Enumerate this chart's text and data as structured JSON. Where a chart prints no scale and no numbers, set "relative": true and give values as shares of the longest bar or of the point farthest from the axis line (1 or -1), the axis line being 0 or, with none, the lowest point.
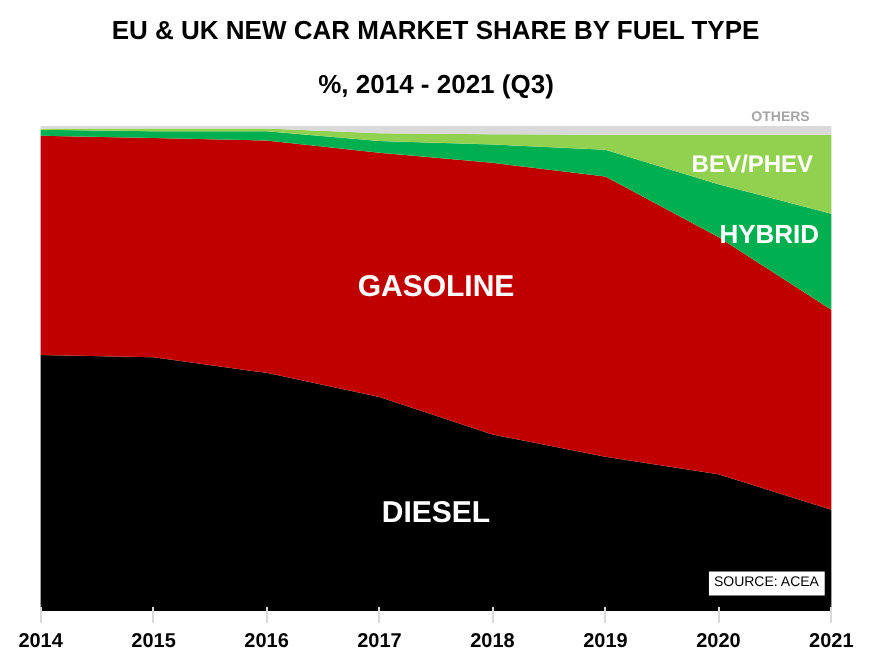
{
  "chart_data": {
    "type": "area",
    "title": "EU & UK NEW CAR MARKET SHARE BY FUEL TYPE",
    "subtitle": "%, 2014 - 2021 (Q3)",
    "categories": [
      "2014",
      "2015",
      "2016",
      "2017",
      "2018",
      "2019",
      "2020",
      "2021"
    ],
    "stacked": true,
    "relative": true,
    "grid": false,
    "series": [
      {
        "name": "DIESEL",
        "color": "#000000",
        "values": [
          0.528,
          0.523,
          0.491,
          0.441,
          0.364,
          0.318,
          0.282,
          0.209
        ]
      },
      {
        "name": "GASOLINE",
        "color": "#c00000",
        "values": [
          0.452,
          0.452,
          0.479,
          0.504,
          0.56,
          0.578,
          0.489,
          0.412
        ]
      },
      {
        "name": "HYBRID",
        "color": "#00b050",
        "values": [
          0.012,
          0.014,
          0.019,
          0.024,
          0.038,
          0.055,
          0.109,
          0.198
        ]
      },
      {
        "name": "BEV/PHEV",
        "color": "#92d050",
        "values": [
          0.003,
          0.006,
          0.006,
          0.016,
          0.021,
          0.031,
          0.102,
          0.163
        ]
      },
      {
        "name": "OTHERS",
        "color": "#d9d9d9",
        "values": [
          0.005,
          0.005,
          0.005,
          0.015,
          0.017,
          0.018,
          0.018,
          0.018
        ]
      }
    ],
    "annotations": [
      "SOURCE: ACEA"
    ]
  }
}
